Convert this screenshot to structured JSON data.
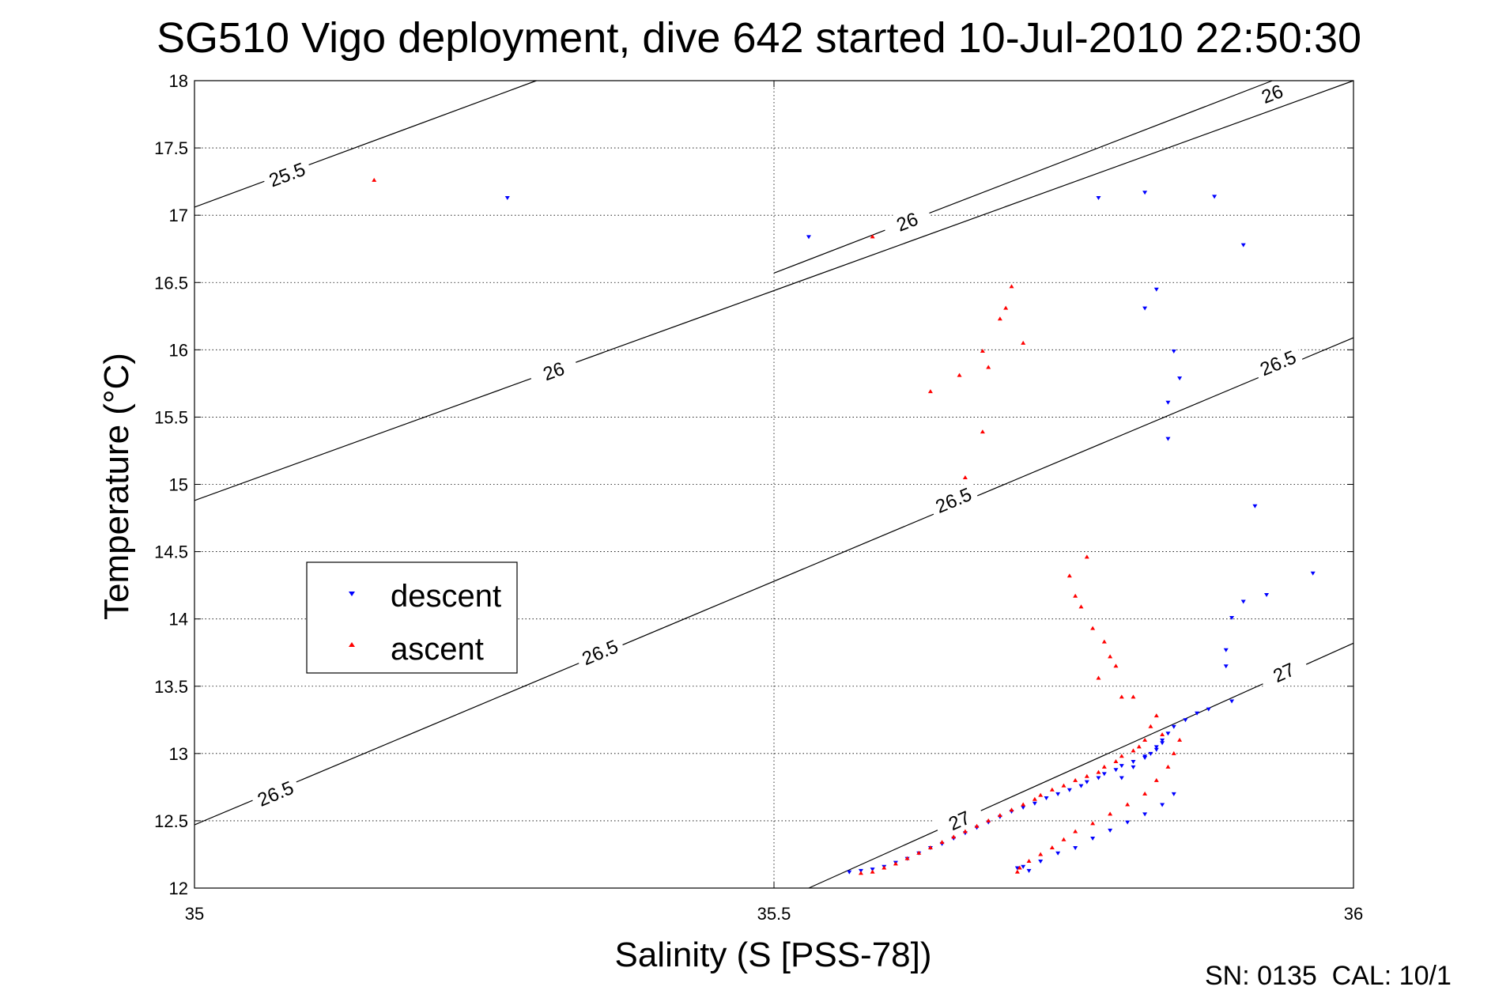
{
  "chart_data": {
    "type": "scatter",
    "title": "SG510 Vigo deployment, dive 642 started 10-Jul-2010 22:50:30",
    "xlabel": "Salinity (S [PSS-78])",
    "ylabel": "Temperature (°C)",
    "xlim": [
      35,
      36
    ],
    "ylim": [
      12,
      18
    ],
    "x_ticks": [
      35,
      35.5,
      36
    ],
    "x_tick_labels": [
      "35",
      "35.5",
      "36"
    ],
    "y_ticks": [
      12,
      12.5,
      13,
      13.5,
      14,
      14.5,
      15,
      15.5,
      16,
      16.5,
      17,
      17.5,
      18
    ],
    "y_tick_labels": [
      "12",
      "12.5",
      "13",
      "13.5",
      "14",
      "14.5",
      "15",
      "15.5",
      "16",
      "16.5",
      "17",
      "17.5",
      "18"
    ],
    "grid": true,
    "legend_position": "left-middle",
    "footer": "SN: 0135  CAL: 10/1",
    "series": [
      {
        "name": "descent",
        "marker": "triangle-down",
        "color": "#0000ff",
        "points": [
          [
            35.27,
            17.13
          ],
          [
            35.53,
            16.84
          ],
          [
            35.78,
            17.13
          ],
          [
            35.82,
            17.17
          ],
          [
            35.88,
            17.14
          ],
          [
            35.905,
            16.78
          ],
          [
            35.83,
            16.45
          ],
          [
            35.82,
            16.31
          ],
          [
            35.845,
            15.99
          ],
          [
            35.85,
            15.79
          ],
          [
            35.84,
            15.61
          ],
          [
            35.84,
            15.34
          ],
          [
            35.915,
            14.84
          ],
          [
            35.965,
            14.34
          ],
          [
            35.925,
            14.18
          ],
          [
            35.905,
            14.13
          ],
          [
            35.895,
            14.01
          ],
          [
            35.89,
            13.77
          ],
          [
            35.89,
            13.65
          ],
          [
            35.895,
            13.39
          ],
          [
            35.875,
            13.33
          ],
          [
            35.865,
            13.3
          ],
          [
            35.855,
            13.25
          ],
          [
            35.845,
            13.2
          ],
          [
            35.84,
            13.15
          ],
          [
            35.835,
            13.1
          ],
          [
            35.83,
            13.05
          ],
          [
            35.825,
            13.0
          ],
          [
            35.82,
            12.97
          ],
          [
            35.81,
            12.94
          ],
          [
            35.8,
            12.91
          ],
          [
            35.795,
            12.88
          ],
          [
            35.785,
            12.85
          ],
          [
            35.78,
            12.82
          ],
          [
            35.77,
            12.79
          ],
          [
            35.765,
            12.76
          ],
          [
            35.755,
            12.73
          ],
          [
            35.745,
            12.7
          ],
          [
            35.735,
            12.67
          ],
          [
            35.725,
            12.63
          ],
          [
            35.715,
            12.6
          ],
          [
            35.705,
            12.57
          ],
          [
            35.695,
            12.53
          ],
          [
            35.685,
            12.49
          ],
          [
            35.675,
            12.45
          ],
          [
            35.665,
            12.41
          ],
          [
            35.655,
            12.37
          ],
          [
            35.645,
            12.33
          ],
          [
            35.635,
            12.3
          ],
          [
            35.625,
            12.26
          ],
          [
            35.615,
            12.22
          ],
          [
            35.605,
            12.19
          ],
          [
            35.595,
            12.16
          ],
          [
            35.585,
            12.14
          ],
          [
            35.575,
            12.13
          ],
          [
            35.565,
            12.12
          ],
          [
            35.72,
            12.13
          ],
          [
            35.71,
            12.15
          ],
          [
            35.715,
            12.16
          ],
          [
            35.73,
            12.2
          ],
          [
            35.745,
            12.26
          ],
          [
            35.76,
            12.3
          ],
          [
            35.775,
            12.37
          ],
          [
            35.79,
            12.43
          ],
          [
            35.805,
            12.49
          ],
          [
            35.82,
            12.55
          ],
          [
            35.835,
            12.62
          ],
          [
            35.845,
            12.7
          ],
          [
            35.8,
            12.82
          ],
          [
            35.81,
            12.9
          ],
          [
            35.82,
            12.98
          ],
          [
            35.83,
            13.03
          ],
          [
            35.835,
            13.08
          ]
        ]
      },
      {
        "name": "ascent",
        "marker": "triangle-up",
        "color": "#ff0000",
        "points": [
          [
            35.155,
            17.26
          ],
          [
            35.585,
            16.84
          ],
          [
            35.705,
            16.47
          ],
          [
            35.7,
            16.31
          ],
          [
            35.695,
            16.23
          ],
          [
            35.715,
            16.05
          ],
          [
            35.68,
            15.99
          ],
          [
            35.685,
            15.87
          ],
          [
            35.66,
            15.81
          ],
          [
            35.635,
            15.69
          ],
          [
            35.68,
            15.39
          ],
          [
            35.665,
            15.05
          ],
          [
            35.77,
            14.46
          ],
          [
            35.755,
            14.32
          ],
          [
            35.76,
            14.17
          ],
          [
            35.765,
            14.09
          ],
          [
            35.775,
            13.93
          ],
          [
            35.785,
            13.83
          ],
          [
            35.79,
            13.72
          ],
          [
            35.795,
            13.65
          ],
          [
            35.78,
            13.56
          ],
          [
            35.8,
            13.42
          ],
          [
            35.81,
            13.42
          ],
          [
            35.83,
            13.28
          ],
          [
            35.825,
            13.2
          ],
          [
            35.835,
            13.14
          ],
          [
            35.82,
            13.1
          ],
          [
            35.815,
            13.05
          ],
          [
            35.81,
            13.02
          ],
          [
            35.8,
            12.98
          ],
          [
            35.795,
            12.94
          ],
          [
            35.785,
            12.9
          ],
          [
            35.78,
            12.86
          ],
          [
            35.77,
            12.83
          ],
          [
            35.76,
            12.8
          ],
          [
            35.75,
            12.76
          ],
          [
            35.74,
            12.73
          ],
          [
            35.73,
            12.69
          ],
          [
            35.725,
            12.66
          ],
          [
            35.715,
            12.62
          ],
          [
            35.705,
            12.58
          ],
          [
            35.695,
            12.54
          ],
          [
            35.685,
            12.5
          ],
          [
            35.675,
            12.46
          ],
          [
            35.665,
            12.42
          ],
          [
            35.655,
            12.38
          ],
          [
            35.645,
            12.34
          ],
          [
            35.635,
            12.3
          ],
          [
            35.625,
            12.26
          ],
          [
            35.615,
            12.22
          ],
          [
            35.605,
            12.18
          ],
          [
            35.595,
            12.15
          ],
          [
            35.585,
            12.12
          ],
          [
            35.575,
            12.11
          ],
          [
            35.71,
            12.12
          ],
          [
            35.712,
            12.15
          ],
          [
            35.72,
            12.2
          ],
          [
            35.73,
            12.25
          ],
          [
            35.74,
            12.3
          ],
          [
            35.75,
            12.36
          ],
          [
            35.76,
            12.42
          ],
          [
            35.775,
            12.48
          ],
          [
            35.79,
            12.55
          ],
          [
            35.805,
            12.62
          ],
          [
            35.82,
            12.7
          ],
          [
            35.83,
            12.8
          ],
          [
            35.84,
            12.9
          ],
          [
            35.845,
            13.0
          ],
          [
            35.85,
            13.1
          ]
        ]
      }
    ],
    "isopycnals": [
      {
        "label": "25.5",
        "x": [
          35,
          35.295
        ],
        "y": [
          17.06,
          18
        ],
        "label_positions": [
          [
            35.08,
            17.3
          ]
        ]
      },
      {
        "label": "26",
        "x": [
          35,
          36
        ],
        "y": [
          14.88,
          18
        ],
        "label_positions": [
          [
            35.31,
            15.84
          ]
        ]
      },
      {
        "label": "26",
        "x": [
          35.5,
          35.93
        ],
        "y": [
          16.57,
          18
        ],
        "label_positions": [
          [
            35.615,
            16.95
          ],
          [
            35.93,
            17.9
          ]
        ]
      },
      {
        "label": "26.5",
        "x": [
          35,
          36
        ],
        "y": [
          12.47,
          16.09
        ],
        "label_positions": [
          [
            35.07,
            12.7
          ],
          [
            35.35,
            13.75
          ],
          [
            35.655,
            14.88
          ],
          [
            35.935,
            15.9
          ]
        ]
      },
      {
        "label": "27",
        "x": [
          35.53,
          36
        ],
        "y": [
          12,
          13.82
        ],
        "label_positions": [
          [
            35.66,
            12.5
          ],
          [
            35.94,
            13.6
          ]
        ]
      }
    ]
  },
  "legend": {
    "descent_label": "descent",
    "ascent_label": "ascent"
  }
}
